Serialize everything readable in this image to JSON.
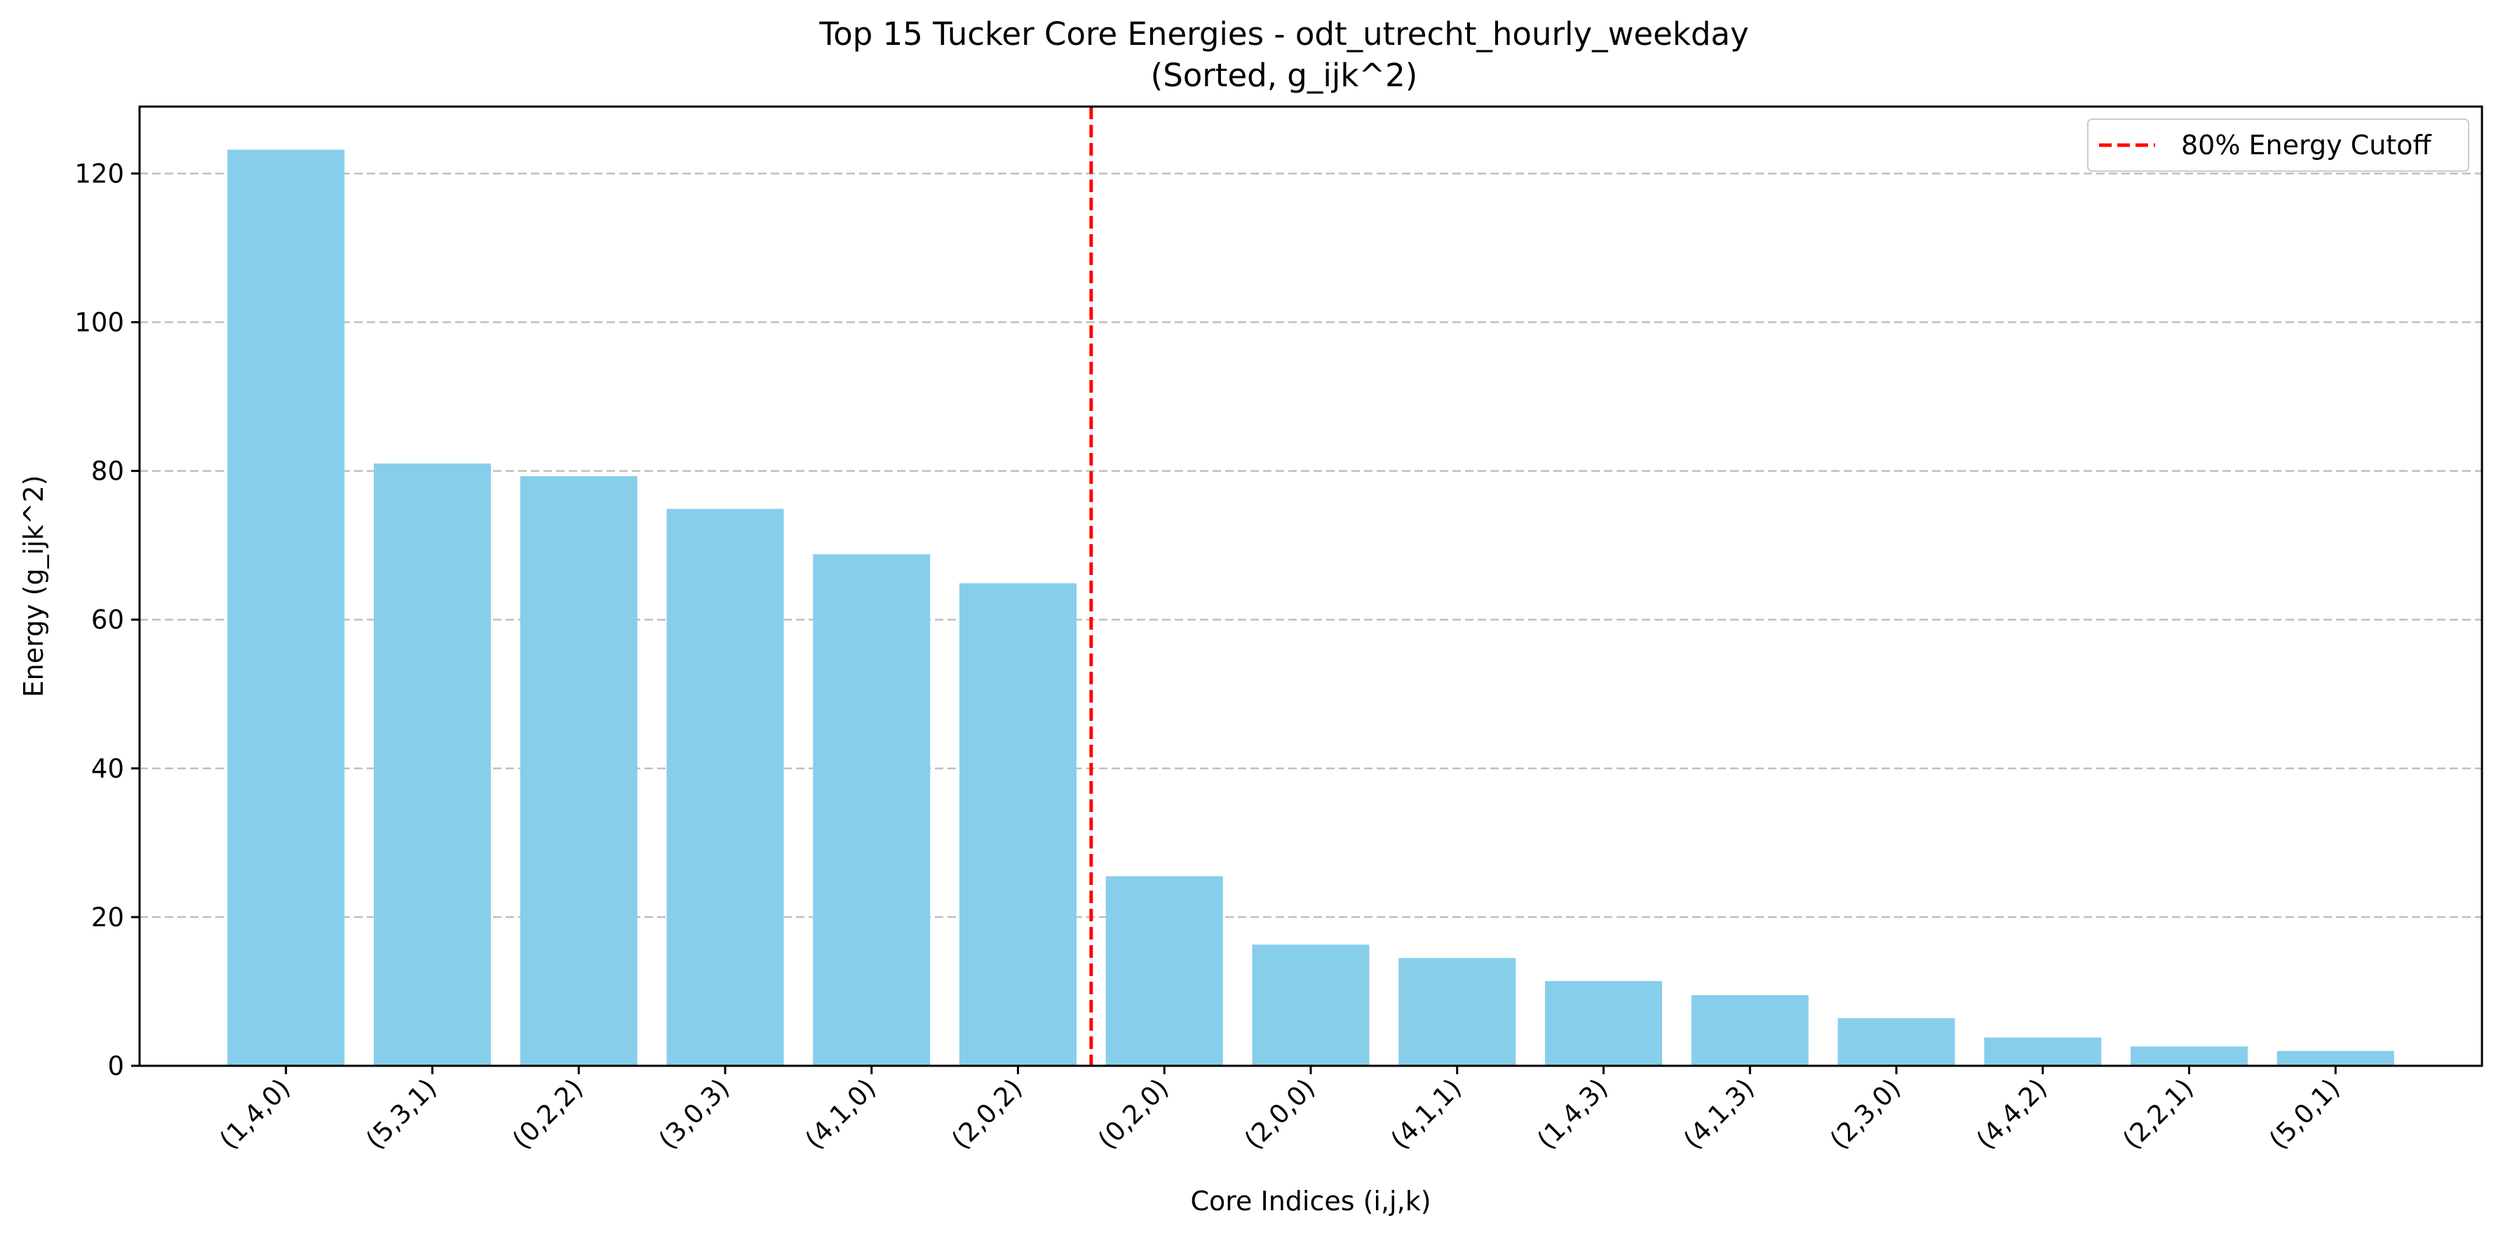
{
  "chart_data": {
    "type": "bar",
    "title": "Top 15 Tucker Core Energies - odt_utrecht_hourly_weekday",
    "subtitle": "(Sorted, g_ijk^2)",
    "xlabel": "Core Indices (i,j,k)",
    "ylabel": "Energy (g_ijk^2)",
    "categories": [
      "(1,4,0)",
      "(5,3,1)",
      "(0,2,2)",
      "(3,0,3)",
      "(4,1,0)",
      "(2,0,2)",
      "(0,2,0)",
      "(2,0,0)",
      "(4,1,1)",
      "(1,4,3)",
      "(4,1,3)",
      "(2,3,0)",
      "(4,4,2)",
      "(2,2,1)",
      "(5,0,1)"
    ],
    "values": [
      123.2,
      81.0,
      79.3,
      74.9,
      68.8,
      64.9,
      25.5,
      16.3,
      14.5,
      11.4,
      9.5,
      6.4,
      3.8,
      2.6,
      2.0
    ],
    "ylim": [
      0,
      129
    ],
    "yticks": [
      0,
      20,
      40,
      60,
      80,
      100,
      120
    ],
    "grid": "y-dashed",
    "bar_color": "#87ceeb",
    "cutoff": {
      "position": 5.5,
      "label": "80% Energy Cutoff",
      "color": "#ff0000",
      "style": "dashed"
    },
    "legend": {
      "placement": "top-right",
      "entries": [
        "80% Energy Cutoff"
      ]
    }
  }
}
